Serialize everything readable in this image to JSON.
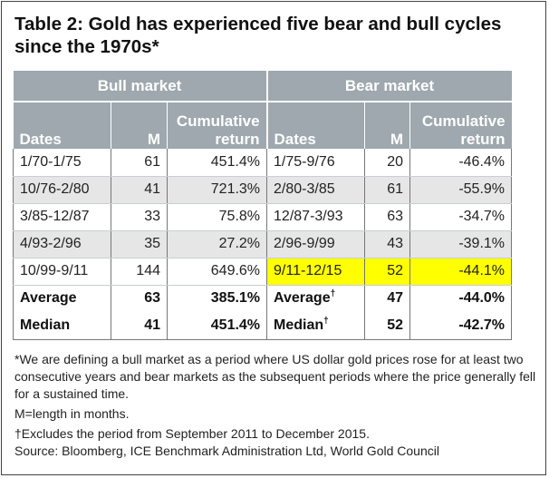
{
  "title": "Table 2: Gold has experienced five bear and bull cycles since the 1970s*",
  "groups": {
    "bull": "Bull market",
    "bear": "Bear market"
  },
  "columns": {
    "dates": "Dates",
    "m": "M",
    "return_line1": "Cumulative",
    "return_line2": "return"
  },
  "rows": [
    {
      "bull_dates": "1/70-1/75",
      "bull_m": "61",
      "bull_ret": "451.4%",
      "bear_dates": "1/75-9/76",
      "bear_m": "20",
      "bear_ret": "-46.4%"
    },
    {
      "bull_dates": "10/76-2/80",
      "bull_m": "41",
      "bull_ret": "721.3%",
      "bear_dates": "2/80-3/85",
      "bear_m": "61",
      "bear_ret": "-55.9%"
    },
    {
      "bull_dates": "3/85-12/87",
      "bull_m": "33",
      "bull_ret": "75.8%",
      "bear_dates": "12/87-3/93",
      "bear_m": "63",
      "bear_ret": "-34.7%"
    },
    {
      "bull_dates": "4/93-2/96",
      "bull_m": "35",
      "bull_ret": "27.2%",
      "bear_dates": "2/96-9/99",
      "bear_m": "43",
      "bear_ret": "-39.1%"
    },
    {
      "bull_dates": "10/99-9/11",
      "bull_m": "144",
      "bull_ret": "649.6%",
      "bear_dates": "9/11-12/15",
      "bear_m": "52",
      "bear_ret": "-44.1%"
    }
  ],
  "summary": {
    "average": {
      "bull_label": "Average",
      "bull_m": "63",
      "bull_ret": "385.1%",
      "bear_label": "Average",
      "bear_mark": "†",
      "bear_m": "47",
      "bear_ret": "-44.0%"
    },
    "median": {
      "bull_label": "Median",
      "bull_m": "41",
      "bull_ret": "451.4%",
      "bear_label": "Median",
      "bear_mark": "†",
      "bear_m": "52",
      "bear_ret": "-42.7%"
    }
  },
  "notes": {
    "definition": "*We are defining a bull market as a period where US dollar gold prices rose for at least two consecutive years and bear markets as the subsequent periods where the price generally fell for a sustained time.",
    "m_def": "M=length in months.",
    "dagger": "†Excludes the period from September 2011 to December 2015.",
    "source": "Source: Bloomberg, ICE Benchmark Administration Ltd, World Gold Council"
  },
  "colors": {
    "header_bg": "#9ea8ae",
    "shade_bg": "#e6e6e6",
    "highlight": "#ffff00"
  }
}
